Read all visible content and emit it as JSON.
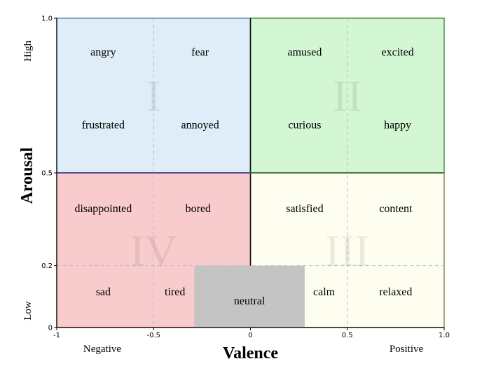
{
  "diagram": {
    "x_axis": {
      "title": "Valence",
      "range": [
        -1,
        1
      ],
      "ticks": [
        {
          "value": -1,
          "label": "-1"
        },
        {
          "value": -0.5,
          "label": "-0.5"
        },
        {
          "value": 0,
          "label": "0"
        },
        {
          "value": 0.5,
          "label": "0.5"
        },
        {
          "value": 1,
          "label": "1.0"
        }
      ],
      "low_end_label": "Negative",
      "high_end_label": "Positive"
    },
    "y_axis": {
      "title": "Arousal",
      "range": [
        0,
        1
      ],
      "ticks": [
        {
          "value": 0,
          "label": "0"
        },
        {
          "value": 0.2,
          "label": "0.2"
        },
        {
          "value": 0.5,
          "label": "0.5"
        },
        {
          "value": 1,
          "label": "1.0"
        }
      ],
      "low_end_label": "Low",
      "high_end_label": "High"
    },
    "gridlines": {
      "x": [
        -0.5,
        0.5
      ],
      "y": [
        0.2
      ]
    },
    "quadrants": [
      {
        "numeral": "I",
        "x0": -1,
        "x1": 0,
        "y0": 0.5,
        "y1": 1,
        "fill": "#deedf7",
        "stroke": "#6f8fb0"
      },
      {
        "numeral": "II",
        "x0": 0,
        "x1": 1,
        "y0": 0.5,
        "y1": 1,
        "fill": "#d3f7d3",
        "stroke": "#4f8f4f"
      },
      {
        "numeral": "III",
        "x0": 0,
        "x1": 1,
        "y0": 0,
        "y1": 0.5,
        "fill": "#fefef0",
        "stroke": "#8a8a60"
      },
      {
        "numeral": "IV",
        "x0": -1,
        "x1": 0,
        "y0": 0,
        "y1": 0.5,
        "fill": "#f8cccc",
        "stroke": "#b07070"
      }
    ],
    "neutral_region": {
      "label": "neutral",
      "x0": -0.29,
      "x1": 0.28,
      "y0": 0,
      "y1": 0.2,
      "fill": "#c4c4c4"
    },
    "emotions": [
      {
        "label": "angry",
        "x": -0.76,
        "y": 0.89
      },
      {
        "label": "fear",
        "x": -0.26,
        "y": 0.89
      },
      {
        "label": "frustrated",
        "x": -0.76,
        "y": 0.655
      },
      {
        "label": "annoyed",
        "x": -0.26,
        "y": 0.655
      },
      {
        "label": "amused",
        "x": 0.28,
        "y": 0.89
      },
      {
        "label": "excited",
        "x": 0.76,
        "y": 0.89
      },
      {
        "label": "curious",
        "x": 0.28,
        "y": 0.655
      },
      {
        "label": "happy",
        "x": 0.76,
        "y": 0.655
      },
      {
        "label": "disappointed",
        "x": -0.76,
        "y": 0.385
      },
      {
        "label": "bored",
        "x": -0.27,
        "y": 0.385
      },
      {
        "label": "satisfied",
        "x": 0.28,
        "y": 0.385
      },
      {
        "label": "content",
        "x": 0.75,
        "y": 0.385
      },
      {
        "label": "sad",
        "x": -0.76,
        "y": 0.115
      },
      {
        "label": "tired",
        "x": -0.39,
        "y": 0.115
      },
      {
        "label": "calm",
        "x": 0.38,
        "y": 0.115
      },
      {
        "label": "relaxed",
        "x": 0.75,
        "y": 0.115
      }
    ]
  }
}
